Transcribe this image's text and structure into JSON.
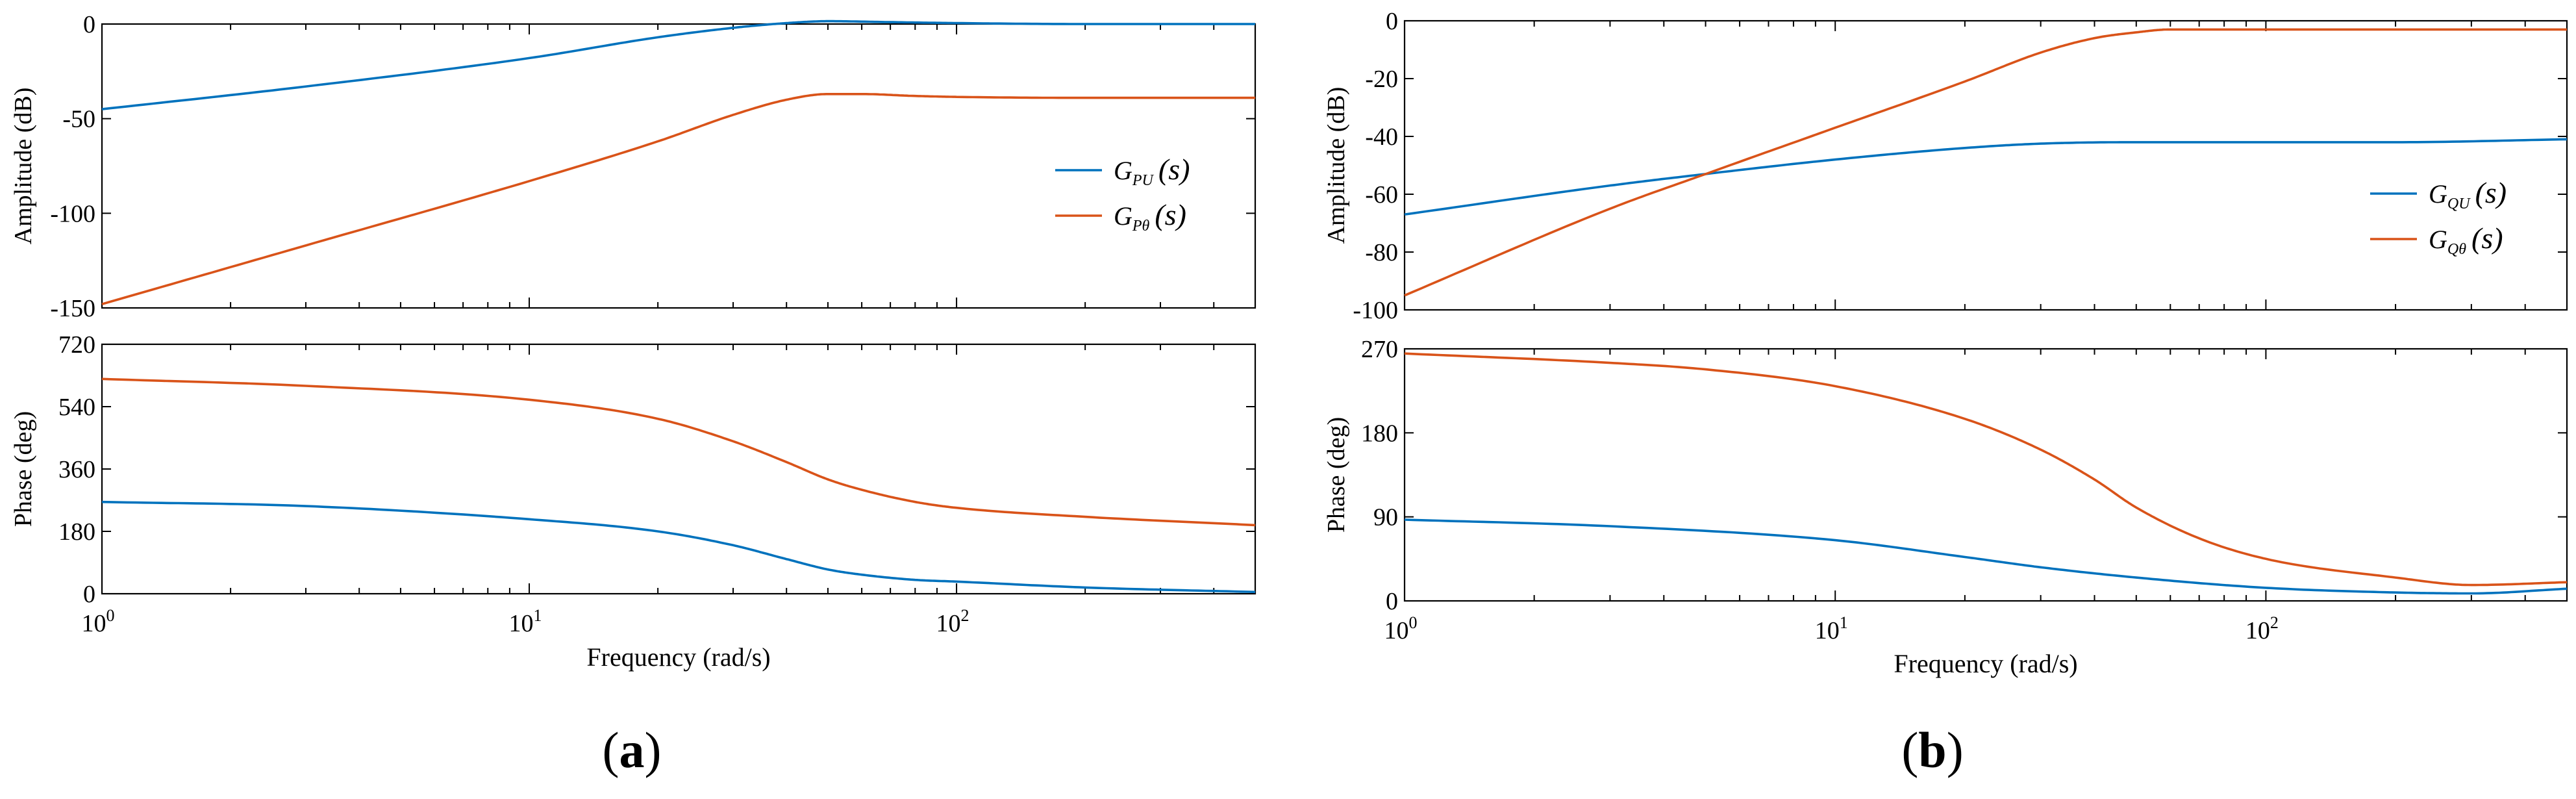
{
  "chart_data": [
    {
      "id": "a",
      "type": "line",
      "panel_label": "a",
      "xlabel": "Frequency (rad/s)",
      "xscale": "log",
      "xlim": [
        1,
        500
      ],
      "x_ticks": [
        {
          "value": 1,
          "base": "10",
          "exp": "0"
        },
        {
          "value": 10,
          "base": "10",
          "exp": "1"
        },
        {
          "value": 100,
          "base": "10",
          "exp": "2"
        }
      ],
      "magnitude": {
        "ylabel": "Amplitude (dB)",
        "ylim": [
          -150,
          0
        ],
        "y_ticks": [
          "0",
          "-50",
          "-100",
          "-150"
        ],
        "legend": {
          "position": "right-middle",
          "entries": [
            {
              "main": "G",
              "sub": "PU",
              "arg": "(s)",
              "color": "#0072BD"
            },
            {
              "main": "G",
              "sub": "Pθ",
              "arg": "(s)",
              "color": "#D95319"
            }
          ]
        },
        "series": [
          {
            "name": "G_PU(s)",
            "color": "#0072BD",
            "x": [
              1,
              3,
              10,
              20,
              30,
              40,
              50,
              70,
              100,
              200,
              500
            ],
            "y": [
              -45,
              -33,
              -18,
              -7,
              -2,
              0.5,
              1.5,
              1,
              0.5,
              0,
              0
            ]
          },
          {
            "name": "G_Pθ(s)",
            "color": "#D95319",
            "x": [
              1,
              3,
              10,
              20,
              30,
              40,
              50,
              60,
              80,
              100,
              200,
              500
            ],
            "y": [
              -148,
              -117,
              -83,
              -62,
              -48,
              -40,
              -37,
              -37,
              -38,
              -38.5,
              -39,
              -39
            ]
          }
        ]
      },
      "phase": {
        "ylabel": "Phase (deg)",
        "ylim": [
          0,
          720
        ],
        "y_ticks": [
          "0",
          "180",
          "360",
          "540",
          "720"
        ],
        "series": [
          {
            "name": "G_PU(s)",
            "color": "#0072BD",
            "x": [
              1,
              3,
              10,
              20,
              30,
              40,
              50,
              60,
              80,
              100,
              200,
              500
            ],
            "y": [
              265,
              253,
              215,
              180,
              140,
              100,
              70,
              55,
              40,
              35,
              18,
              5
            ]
          },
          {
            "name": "G_Pθ(s)",
            "color": "#D95319",
            "x": [
              1,
              3,
              10,
              20,
              30,
              40,
              50,
              60,
              80,
              100,
              200,
              500
            ],
            "y": [
              620,
              600,
              560,
              505,
              440,
              380,
              330,
              300,
              265,
              248,
              222,
              198
            ]
          }
        ]
      }
    },
    {
      "id": "b",
      "type": "line",
      "panel_label": "b",
      "xlabel": "Frequency (rad/s)",
      "xscale": "log",
      "xlim": [
        1,
        500
      ],
      "x_ticks": [
        {
          "value": 1,
          "base": "10",
          "exp": "0"
        },
        {
          "value": 10,
          "base": "10",
          "exp": "1"
        },
        {
          "value": 100,
          "base": "10",
          "exp": "2"
        }
      ],
      "magnitude": {
        "ylabel": "Amplitude (dB)",
        "ylim": [
          -100,
          0
        ],
        "y_ticks": [
          "0",
          "-20",
          "-40",
          "-60",
          "-80",
          "-100"
        ],
        "legend": {
          "position": "right-middle",
          "entries": [
            {
              "main": "G",
              "sub": "QU",
              "arg": "(s)",
              "color": "#0072BD"
            },
            {
              "main": "G",
              "sub": "Qθ",
              "arg": "(s)",
              "color": "#D95319"
            }
          ]
        },
        "series": [
          {
            "name": "G_QU(s)",
            "color": "#0072BD",
            "x": [
              1,
              3,
              5,
              10,
              20,
              30,
              50,
              100,
              200,
              500
            ],
            "y": [
              -67,
              -57,
              -53,
              -48,
              -44,
              -42.5,
              -42,
              -42,
              -42,
              -41
            ]
          },
          {
            "name": "G_Qθ(s)",
            "color": "#D95319",
            "x": [
              1,
              3,
              5,
              10,
              20,
              30,
              40,
              50,
              60,
              100,
              200,
              500
            ],
            "y": [
              -95,
              -65,
              -53,
              -37,
              -21,
              -11,
              -6,
              -4,
              -3,
              -3,
              -3,
              -3
            ]
          }
        ]
      },
      "phase": {
        "ylabel": "Phase (deg)",
        "ylim": [
          0,
          270
        ],
        "y_ticks": [
          "0",
          "90",
          "180",
          "270"
        ],
        "series": [
          {
            "name": "G_QU(s)",
            "color": "#0072BD",
            "x": [
              1,
              3,
              10,
              20,
              30,
              50,
              100,
              200,
              300,
              500
            ],
            "y": [
              87,
              80,
              65,
              47,
              36,
              25,
              14,
              9,
              8,
              13
            ]
          },
          {
            "name": "G_Qθ(s)",
            "color": "#D95319",
            "x": [
              1,
              3,
              5,
              10,
              20,
              30,
              40,
              50,
              70,
              100,
              200,
              300,
              500
            ],
            "y": [
              265,
              255,
              248,
              230,
              195,
              162,
              130,
              100,
              67,
              45,
              25,
              17,
              20
            ]
          }
        ]
      }
    }
  ]
}
